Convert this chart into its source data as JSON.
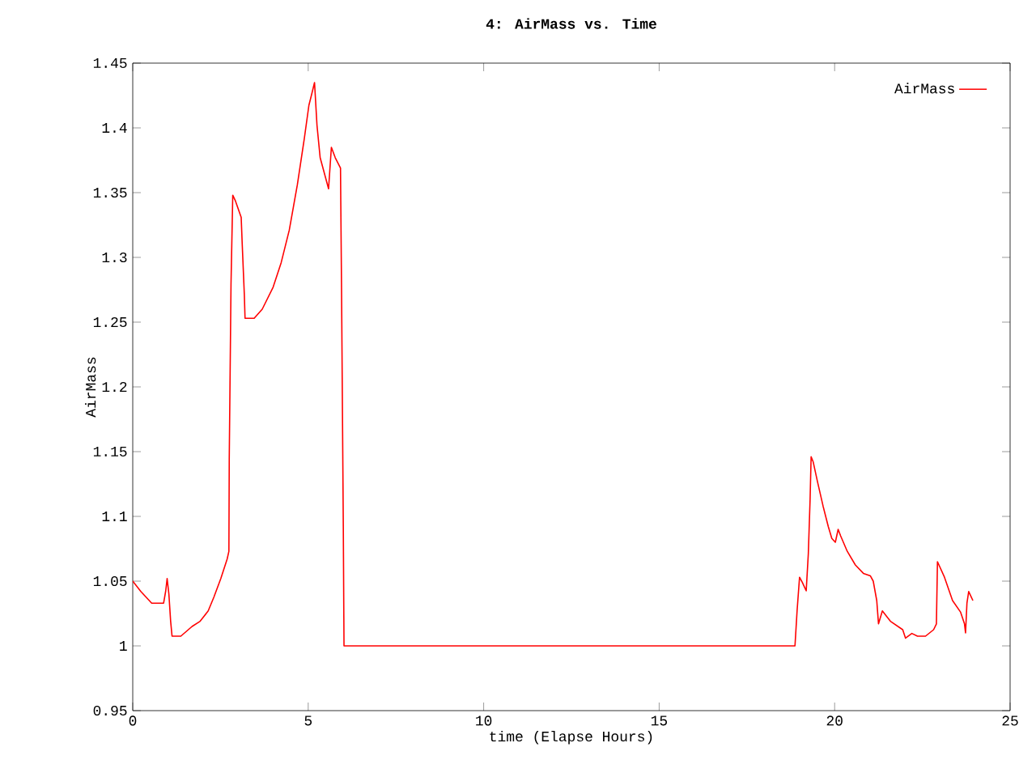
{
  "chart_data": {
    "type": "line",
    "title": "4: AirMass vs. Time",
    "xlabel": "time (Elapse Hours)",
    "ylabel": "AirMass",
    "x": [
      0,
      0.23,
      0.54,
      0.88,
      0.94,
      0.98,
      1.03,
      1.08,
      1.12,
      1.37,
      1.69,
      1.92,
      2.15,
      2.31,
      2.51,
      2.69,
      2.74,
      2.75,
      2.8,
      2.85,
      2.92,
      3.09,
      3.12,
      3.18,
      3.2,
      3.46,
      3.69,
      4.0,
      4.23,
      4.46,
      4.69,
      4.89,
      5.02,
      5.09,
      5.18,
      5.25,
      5.34,
      5.58,
      5.66,
      5.77,
      5.92,
      5.95,
      6.0,
      6.02,
      18.87,
      18.93,
      19.0,
      19.08,
      19.19,
      19.25,
      19.3,
      19.33,
      19.39,
      19.51,
      19.67,
      19.82,
      19.92,
      20.02,
      20.1,
      20.17,
      20.36,
      20.59,
      20.82,
      21.02,
      21.1,
      21.2,
      21.25,
      21.36,
      21.59,
      21.94,
      22.02,
      22.2,
      22.36,
      22.59,
      22.82,
      22.9,
      22.93,
      23.13,
      23.36,
      23.59,
      23.7,
      23.73,
      23.77,
      23.82,
      23.94
    ],
    "series": [
      {
        "name": "AirMass",
        "color": "#ff0000",
        "values": [
          1.05,
          1.042,
          1.033,
          1.033,
          1.0425,
          1.052,
          1.04,
          1.019,
          1.0075,
          1.0075,
          1.015,
          1.019,
          1.027,
          1.0375,
          1.052,
          1.067,
          1.073,
          1.144,
          1.279,
          1.348,
          1.344,
          1.331,
          1.31,
          1.271,
          1.253,
          1.253,
          1.26,
          1.277,
          1.296,
          1.321,
          1.356,
          1.392,
          1.4175,
          1.425,
          1.435,
          1.402,
          1.377,
          1.353,
          1.385,
          1.377,
          1.369,
          1.275,
          1.092,
          1.0,
          1.0,
          1.027,
          1.053,
          1.049,
          1.0425,
          1.071,
          1.1125,
          1.146,
          1.142,
          1.127,
          1.108,
          1.092,
          1.083,
          1.08,
          1.09,
          1.085,
          1.073,
          1.0625,
          1.056,
          1.054,
          1.05,
          1.035,
          1.017,
          1.027,
          1.019,
          1.0125,
          1.006,
          1.0096,
          1.0075,
          1.0075,
          1.0125,
          1.017,
          1.065,
          1.053,
          1.035,
          1.026,
          1.017,
          1.01,
          1.033,
          1.042,
          1.035
        ]
      }
    ],
    "xlim": [
      0,
      25
    ],
    "ylim": [
      0.95,
      1.45
    ],
    "xticks": [
      0,
      5,
      10,
      15,
      20,
      25
    ],
    "yticks": [
      0.95,
      1,
      1.05,
      1.1,
      1.15,
      1.2,
      1.25,
      1.3,
      1.35,
      1.4,
      1.45
    ],
    "legend": "top right",
    "marker": "none",
    "line_style": "solid"
  }
}
